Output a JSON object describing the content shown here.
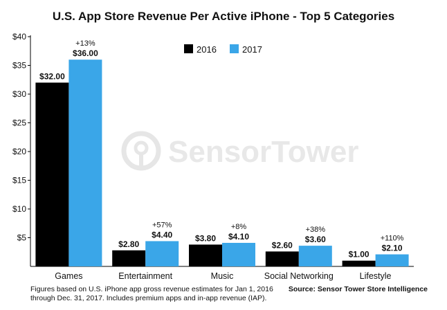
{
  "chart_data": {
    "type": "bar",
    "title": "U.S. App Store Revenue Per Active iPhone - Top 5 Categories",
    "categories": [
      "Games",
      "Entertainment",
      "Music",
      "Social Networking",
      "Lifestyle"
    ],
    "series": [
      {
        "name": "2016",
        "values": [
          32.0,
          2.8,
          3.8,
          2.6,
          1.0
        ],
        "color": "#000000",
        "labels": [
          "$32.00",
          "$2.80",
          "$3.80",
          "$2.60",
          "$1.00"
        ]
      },
      {
        "name": "2017",
        "values": [
          36.0,
          4.4,
          4.1,
          3.6,
          2.1
        ],
        "color": "#3aa6e8",
        "labels": [
          "$36.00",
          "$4.40",
          "$4.10",
          "$3.60",
          "$2.10"
        ]
      }
    ],
    "growth_labels": [
      "+13%",
      "+57%",
      "+8%",
      "+38%",
      "+110%"
    ],
    "y_ticks": [
      {
        "value": 5,
        "label": "$5"
      },
      {
        "value": 10,
        "label": "$10"
      },
      {
        "value": 15,
        "label": "$15"
      },
      {
        "value": 20,
        "label": "$20"
      },
      {
        "value": 25,
        "label": "$25"
      },
      {
        "value": 30,
        "label": "$30"
      },
      {
        "value": 35,
        "label": "$35"
      },
      {
        "value": 40,
        "label": "$40"
      }
    ],
    "ylim": [
      0,
      40
    ],
    "xlabel": "",
    "ylabel": "",
    "grid": false,
    "legend_position": "top-center",
    "watermark": "SensorTower"
  },
  "footnote": "Figures based on U.S. iPhone app gross revenue estimates for Jan 1, 2016 through Dec. 31, 2017. Includes premium apps and in-app revenue (IAP).",
  "source": "Source: Sensor Tower Store Intelligence"
}
